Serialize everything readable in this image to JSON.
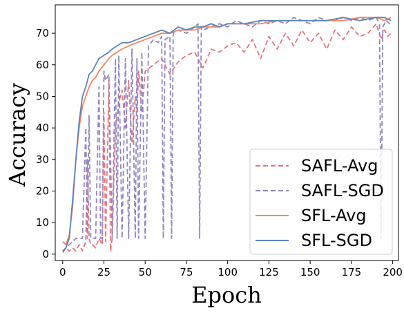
{
  "chart_data": {
    "type": "line",
    "xlabel": "Epoch",
    "ylabel": "Accuracy",
    "xlim": [
      -4.5,
      203.5
    ],
    "ylim": [
      -2,
      79
    ],
    "x_ticks": [
      0,
      25,
      50,
      75,
      100,
      125,
      150,
      175,
      200
    ],
    "y_ticks": [
      0,
      10,
      20,
      30,
      40,
      50,
      60,
      70
    ],
    "grid": false,
    "legend_position": "lower-right",
    "series": [
      {
        "name": "SAFL-Avg",
        "color": "#e8737a",
        "dash": "dashed",
        "x": [
          0,
          2,
          4,
          6,
          8,
          10,
          12,
          14,
          15,
          16,
          17,
          18,
          20,
          22,
          24,
          25,
          26,
          28,
          29,
          30,
          32,
          34,
          36,
          38,
          40,
          42,
          44,
          45,
          46,
          48,
          50,
          55,
          60,
          65,
          70,
          75,
          80,
          85,
          90,
          95,
          100,
          105,
          110,
          115,
          120,
          125,
          130,
          135,
          140,
          145,
          150,
          155,
          160,
          165,
          170,
          175,
          180,
          185,
          190,
          193,
          195,
          197,
          199
        ],
        "y": [
          0.5,
          2,
          1,
          2,
          1,
          3,
          1,
          4,
          30,
          5,
          3,
          3,
          2,
          5,
          3,
          45,
          4,
          55,
          1,
          5,
          40,
          48,
          52,
          40,
          55,
          35,
          50,
          45,
          58,
          45,
          58,
          60,
          62,
          57,
          61,
          63,
          64,
          59,
          65,
          64,
          66,
          67,
          64,
          68,
          62,
          69,
          65,
          70,
          66,
          71,
          67,
          70,
          65,
          71,
          68,
          72,
          69,
          70,
          73,
          68,
          71,
          69,
          70
        ]
      },
      {
        "name": "SAFL-SGD",
        "color": "#9186c2",
        "dash": "dashed",
        "x": [
          0,
          2,
          4,
          6,
          8,
          10,
          12,
          14,
          15,
          16,
          17,
          18,
          20,
          22,
          23,
          24,
          25,
          26,
          28,
          30,
          32,
          33,
          34,
          36,
          38,
          40,
          42,
          44,
          45,
          46,
          48,
          50,
          52,
          55,
          58,
          60,
          61,
          62,
          65,
          66,
          67,
          70,
          75,
          80,
          82,
          83,
          84,
          85,
          90,
          95,
          100,
          105,
          110,
          115,
          120,
          125,
          130,
          135,
          140,
          145,
          150,
          155,
          160,
          165,
          170,
          175,
          180,
          185,
          190,
          192,
          193,
          194,
          196,
          198,
          199
        ],
        "y": [
          1,
          2,
          3,
          4,
          5,
          5,
          5,
          40,
          5,
          44,
          5,
          5,
          5,
          53,
          5,
          5,
          58,
          55,
          57,
          5,
          62,
          5,
          63,
          5,
          62,
          5,
          65,
          5,
          62,
          5,
          64,
          5,
          66,
          68,
          67,
          69,
          5,
          68,
          69,
          5,
          70,
          71,
          70,
          72,
          73,
          5,
          72,
          71,
          72,
          73,
          72,
          74,
          73,
          72,
          74,
          73,
          74,
          73,
          75,
          74,
          73,
          75,
          74,
          74,
          75,
          74,
          75,
          74,
          75,
          73,
          5,
          72,
          74,
          73,
          74
        ]
      },
      {
        "name": "SFL-Avg",
        "color": "#f4865c",
        "dash": "solid",
        "x": [
          0,
          2,
          4,
          6,
          8,
          10,
          12,
          14,
          16,
          18,
          20,
          22,
          25,
          28,
          30,
          33,
          36,
          40,
          45,
          50,
          55,
          60,
          65,
          70,
          75,
          80,
          85,
          90,
          95,
          100,
          110,
          120,
          130,
          140,
          150,
          160,
          170,
          180,
          190,
          195,
          199
        ],
        "y": [
          4,
          3,
          6,
          15,
          30,
          40,
          47,
          50,
          53,
          55,
          56,
          58,
          60,
          62,
          63,
          64,
          65,
          66,
          67,
          68,
          69,
          70,
          70,
          71,
          71,
          71,
          72,
          72,
          72,
          73,
          73,
          73,
          74,
          74,
          74,
          74,
          74,
          75,
          75,
          74,
          75
        ]
      },
      {
        "name": "SFL-SGD",
        "color": "#5b84b8",
        "dash": "solid",
        "x": [
          0,
          2,
          4,
          6,
          8,
          10,
          12,
          14,
          16,
          18,
          20,
          22,
          25,
          28,
          30,
          33,
          36,
          40,
          45,
          50,
          55,
          60,
          65,
          70,
          75,
          80,
          85,
          90,
          95,
          100,
          110,
          120,
          130,
          140,
          150,
          160,
          170,
          180,
          190,
          195,
          199
        ],
        "y": [
          1,
          2,
          5,
          17,
          30,
          42,
          50,
          53,
          57,
          58,
          60,
          62,
          63,
          64,
          65,
          66,
          67,
          67,
          68,
          69,
          70,
          71,
          70,
          72,
          71,
          72,
          72,
          73,
          72,
          73,
          73,
          74,
          74,
          74,
          74,
          74,
          75,
          74,
          75,
          75,
          74
        ]
      }
    ]
  }
}
